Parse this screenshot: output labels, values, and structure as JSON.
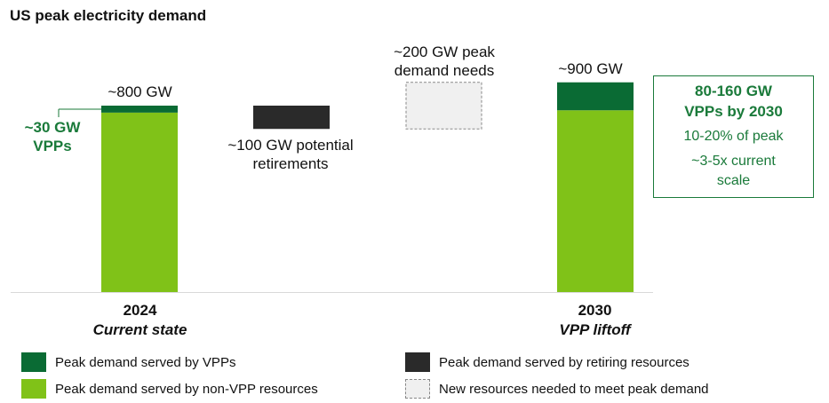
{
  "chart_data": {
    "type": "bar",
    "title": "US peak electricity demand",
    "unit": "GW",
    "ylim": [
      0,
      1000
    ],
    "categories": [
      {
        "year": "2024",
        "subtitle": "Current state"
      },
      {
        "year": "2030",
        "subtitle": "VPP liftoff"
      }
    ],
    "series": [
      {
        "name": "Peak demand served by VPPs",
        "values": [
          30,
          120
        ]
      },
      {
        "name": "Peak demand served by non-VPP resources",
        "values": [
          770,
          780
        ]
      }
    ],
    "bridge": [
      {
        "name": "Peak demand served by retiring resources",
        "value": 100,
        "level_top": 800,
        "label": [
          "~100 GW potential",
          "retirements"
        ]
      },
      {
        "name": "New resources needed to meet peak demand",
        "value": 200,
        "level_top": 900,
        "label": [
          "~200 GW peak",
          "demand needs"
        ]
      }
    ],
    "data_labels": {
      "total_2024": "~800 GW",
      "total_2030": "~900 GW",
      "vpp_2024": [
        "~30 GW",
        "VPPs"
      ]
    },
    "callout": {
      "line1": [
        "80-160 GW",
        "VPPs by 2030"
      ],
      "line2": "10-20% of peak",
      "line3": [
        "~3-5x current",
        "scale"
      ]
    },
    "colors": {
      "vpp": "#0a6b34",
      "non_vpp": "#80c218",
      "retiring": "#2a2a2a",
      "new": "#f0f0f0",
      "new_border": "#888888"
    },
    "legend": [
      {
        "key": "vpp",
        "label": "Peak demand served by VPPs"
      },
      {
        "key": "non_vpp",
        "label": "Peak demand served by non-VPP resources"
      },
      {
        "key": "retiring",
        "label": "Peak demand served by retiring resources"
      },
      {
        "key": "new",
        "label": "New resources needed to meet peak demand"
      }
    ]
  }
}
